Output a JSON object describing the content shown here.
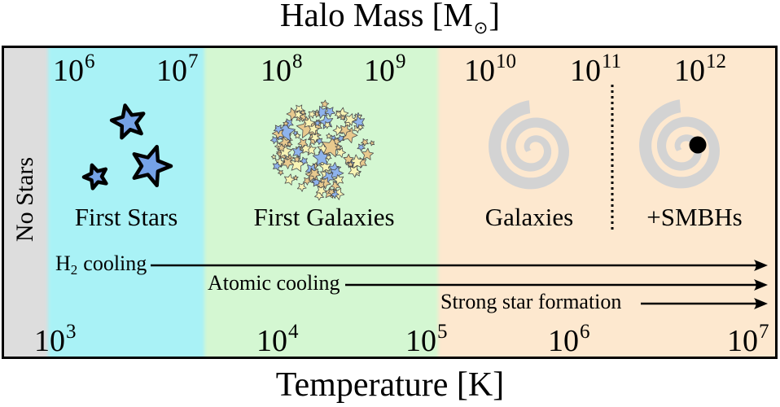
{
  "top_axis": {
    "title": "Halo Mass [M",
    "title_sub": "⊙",
    "title_close": "]"
  },
  "bottom_axis": {
    "title": "Temperature [K]"
  },
  "mass_ticks": [
    {
      "base": "10",
      "exp": "6"
    },
    {
      "base": "10",
      "exp": "7"
    },
    {
      "base": "10",
      "exp": "8"
    },
    {
      "base": "10",
      "exp": "9"
    },
    {
      "base": "10",
      "exp": "10"
    },
    {
      "base": "10",
      "exp": "11"
    },
    {
      "base": "10",
      "exp": "12"
    }
  ],
  "temperature_ticks": [
    {
      "base": "10",
      "exp": "3"
    },
    {
      "base": "10",
      "exp": "4"
    },
    {
      "base": "10",
      "exp": "5"
    },
    {
      "base": "10",
      "exp": "6"
    },
    {
      "base": "10",
      "exp": "7"
    }
  ],
  "regions": {
    "no_stars": {
      "label": "No Stars",
      "color": "#dddddd"
    },
    "first_stars": {
      "label": "First Stars",
      "color": "#a9f2f6",
      "icon": "blue-star-icon"
    },
    "first_galaxies": {
      "label": "First Galaxies",
      "color": "#d4f7d2",
      "icon": "star-cluster-icon"
    },
    "galaxies": {
      "label": "Galaxies",
      "color": "#fde8cf",
      "icon": "spiral-galaxy-icon"
    },
    "galaxies_smbh": {
      "label": "+SMBHs",
      "icon": "black-hole-icon"
    }
  },
  "processes": {
    "h2_cooling": {
      "species": "H",
      "subscript": "2",
      "text": "cooling"
    },
    "atomic_cooling": {
      "text": "Atomic cooling"
    },
    "strong_star_formation": {
      "text": "Strong star formation"
    }
  },
  "colors": {
    "star_fill": "#75a2e6",
    "cluster_stars": [
      "#e8c98e",
      "#f8f4b5",
      "#8eb3ec"
    ],
    "spiral": "#d3d3d3",
    "black_hole": "#000000"
  }
}
